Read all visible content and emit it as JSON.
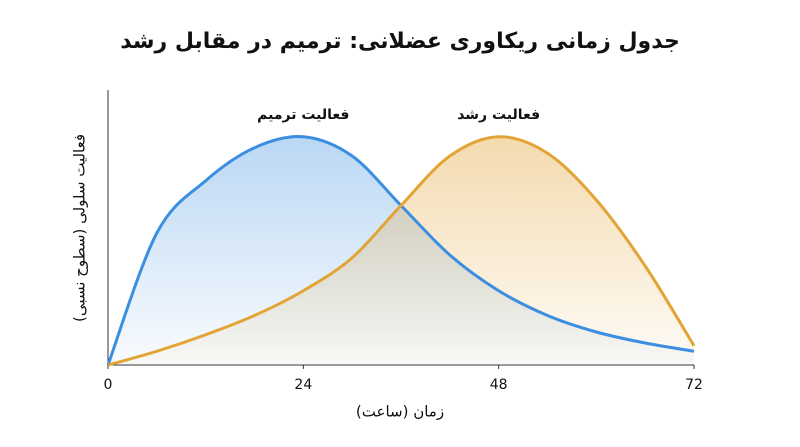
{
  "chart_data": {
    "type": "line",
    "title": "جدول زمانی ریکاوری عضلانی: ترمیم در مقابل رشد",
    "x_label": "زمان (ساعت)",
    "y_label": "فعالیت سلولی (سطوح نسبی)",
    "x": [
      0,
      6,
      12,
      18,
      24,
      30,
      36,
      42,
      48,
      54,
      60,
      66,
      72
    ],
    "series": [
      {
        "name": "فعالیت ترمیم",
        "color": "#3b8ee0",
        "values": [
          0,
          48,
          67,
          79,
          83,
          76,
          58,
          40,
          27,
          18,
          12,
          8,
          5
        ]
      },
      {
        "name": "فعالیت رشد",
        "color": "#e3a436",
        "values": [
          0,
          5,
          11,
          18,
          27,
          39,
          58,
          76,
          83,
          77,
          60,
          36,
          7
        ]
      }
    ],
    "xlim": [
      0,
      72
    ],
    "xticks": [
      0,
      24,
      48,
      72
    ],
    "ylim": [
      0,
      100
    ]
  }
}
